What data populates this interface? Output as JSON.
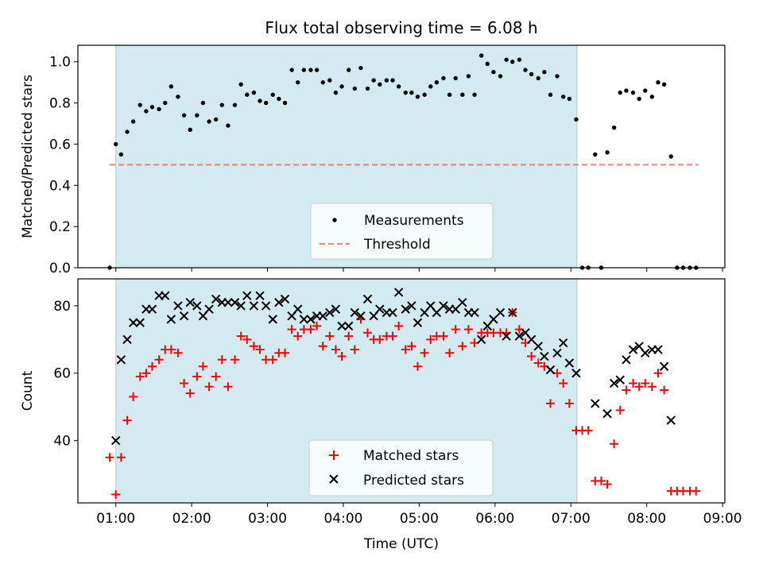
{
  "chart_data": {
    "type": "scatter",
    "title": "Flux total observing time = 6.08 h",
    "xlabel": "Time (UTC)",
    "x_ticks": [
      "01:00",
      "02:00",
      "03:00",
      "04:00",
      "05:00",
      "06:00",
      "07:00",
      "08:00",
      "09:00"
    ],
    "x_range_hours": [
      0.5,
      9.03
    ],
    "shaded_interval_hours": [
      1.0,
      7.08
    ],
    "shade_color": "#d3eaf0",
    "panels": [
      {
        "ylabel": "Matched/Predicted stars",
        "ylim": [
          0.0,
          1.08
        ],
        "y_ticks": [
          "0.0",
          "0.2",
          "0.4",
          "0.6",
          "0.8",
          "1.0"
        ],
        "legend": {
          "position": "lower center",
          "entries": [
            "Measurements",
            "Threshold"
          ]
        },
        "threshold": {
          "name": "Threshold",
          "value": 0.5,
          "x_range": [
            0.92,
            8.68
          ],
          "color": "#f08080",
          "style": "dashed"
        },
        "series": [
          {
            "name": "Measurements",
            "marker": "dot",
            "color": "#000000",
            "x": [
              0.92,
              1.0,
              1.07,
              1.15,
              1.23,
              1.32,
              1.4,
              1.48,
              1.57,
              1.65,
              1.73,
              1.82,
              1.9,
              1.98,
              2.07,
              2.15,
              2.23,
              2.32,
              2.4,
              2.48,
              2.57,
              2.65,
              2.73,
              2.82,
              2.9,
              2.98,
              3.07,
              3.15,
              3.23,
              3.32,
              3.4,
              3.48,
              3.57,
              3.65,
              3.73,
              3.82,
              3.9,
              3.98,
              4.07,
              4.15,
              4.23,
              4.32,
              4.4,
              4.48,
              4.57,
              4.65,
              4.73,
              4.82,
              4.9,
              4.98,
              5.07,
              5.15,
              5.23,
              5.32,
              5.4,
              5.48,
              5.57,
              5.65,
              5.73,
              5.82,
              5.9,
              5.98,
              6.07,
              6.15,
              6.23,
              6.32,
              6.4,
              6.48,
              6.57,
              6.65,
              6.73,
              6.82,
              6.9,
              6.98,
              7.07,
              7.15,
              7.23,
              7.32,
              7.4,
              7.48,
              7.57,
              7.65,
              7.73,
              7.82,
              7.9,
              7.98,
              8.07,
              8.15,
              8.23,
              8.32,
              8.4,
              8.48,
              8.57,
              8.65
            ],
            "y": [
              0.0,
              0.6,
              0.55,
              0.66,
              0.71,
              0.79,
              0.76,
              0.78,
              0.77,
              0.8,
              0.88,
              0.83,
              0.74,
              0.67,
              0.74,
              0.8,
              0.71,
              0.72,
              0.79,
              0.69,
              0.79,
              0.89,
              0.84,
              0.85,
              0.81,
              0.8,
              0.84,
              0.82,
              0.8,
              0.96,
              0.9,
              0.96,
              0.96,
              0.96,
              0.9,
              0.91,
              0.85,
              0.88,
              0.96,
              0.87,
              0.97,
              0.87,
              0.91,
              0.89,
              0.91,
              0.91,
              0.88,
              0.85,
              0.85,
              0.83,
              0.84,
              0.88,
              0.9,
              0.92,
              0.84,
              0.92,
              0.84,
              0.93,
              0.84,
              1.03,
              0.99,
              0.95,
              0.93,
              1.01,
              1.0,
              1.01,
              0.96,
              0.94,
              0.92,
              0.95,
              0.84,
              0.93,
              0.83,
              0.82,
              0.72,
              0.0,
              0.0,
              0.55,
              0.0,
              0.56,
              0.68,
              0.85,
              0.86,
              0.85,
              0.82,
              0.86,
              0.83,
              0.9,
              0.89,
              0.54,
              0.0,
              0.0,
              0.0,
              0.0
            ]
          }
        ]
      },
      {
        "ylabel": "Count",
        "ylim": [
          21.5,
          88
        ],
        "y_ticks": [
          "40",
          "60",
          "80"
        ],
        "legend": {
          "position": "lower center",
          "entries": [
            "Matched stars",
            "Predicted stars"
          ]
        },
        "series": [
          {
            "name": "Matched stars",
            "marker": "plus",
            "color": "#ff0000",
            "x": [
              0.92,
              1.0,
              1.07,
              1.15,
              1.23,
              1.32,
              1.4,
              1.48,
              1.57,
              1.65,
              1.73,
              1.82,
              1.9,
              1.98,
              2.07,
              2.15,
              2.23,
              2.32,
              2.4,
              2.48,
              2.57,
              2.65,
              2.73,
              2.82,
              2.9,
              2.98,
              3.07,
              3.15,
              3.23,
              3.32,
              3.4,
              3.48,
              3.57,
              3.65,
              3.73,
              3.82,
              3.9,
              3.98,
              4.07,
              4.15,
              4.23,
              4.32,
              4.4,
              4.48,
              4.57,
              4.65,
              4.73,
              4.82,
              4.9,
              4.98,
              5.07,
              5.15,
              5.23,
              5.32,
              5.4,
              5.48,
              5.57,
              5.65,
              5.73,
              5.82,
              5.9,
              5.98,
              6.07,
              6.15,
              6.23,
              6.32,
              6.4,
              6.48,
              6.57,
              6.65,
              6.73,
              6.82,
              6.9,
              6.98,
              7.07,
              7.15,
              7.23,
              7.32,
              7.4,
              7.48,
              7.57,
              7.65,
              7.73,
              7.82,
              7.9,
              7.98,
              8.07,
              8.15,
              8.23,
              8.32,
              8.4,
              8.48,
              8.57,
              8.65
            ],
            "y": [
              35,
              24,
              35,
              46,
              53,
              59,
              60,
              62,
              64,
              67,
              67,
              66,
              57,
              54,
              59,
              62,
              56,
              59,
              64,
              56,
              64,
              71,
              70,
              68,
              67,
              64,
              64,
              66,
              66,
              73,
              71,
              73,
              73,
              74,
              68,
              71,
              67,
              65,
              71,
              67,
              76,
              72,
              70,
              70,
              71,
              71,
              74,
              67,
              68,
              62,
              66,
              70,
              71,
              71,
              66,
              73,
              68,
              73,
              69,
              72,
              72,
              72,
              72,
              72,
              78,
              73,
              69,
              65,
              63,
              62,
              51,
              60,
              57,
              51,
              43,
              43,
              43,
              28,
              28,
              27,
              39,
              49,
              55,
              57,
              56,
              57,
              56,
              60,
              55,
              25,
              25,
              25,
              25,
              25
            ]
          },
          {
            "name": "Predicted stars",
            "marker": "x",
            "color": "#000000",
            "x": [
              1.0,
              1.07,
              1.15,
              1.23,
              1.32,
              1.4,
              1.48,
              1.57,
              1.65,
              1.73,
              1.82,
              1.9,
              1.98,
              2.07,
              2.15,
              2.23,
              2.32,
              2.4,
              2.48,
              2.57,
              2.65,
              2.73,
              2.82,
              2.9,
              2.98,
              3.07,
              3.15,
              3.23,
              3.32,
              3.4,
              3.48,
              3.57,
              3.65,
              3.73,
              3.82,
              3.9,
              3.98,
              4.07,
              4.15,
              4.23,
              4.32,
              4.4,
              4.48,
              4.57,
              4.65,
              4.73,
              4.82,
              4.9,
              4.98,
              5.07,
              5.15,
              5.23,
              5.32,
              5.4,
              5.48,
              5.57,
              5.65,
              5.73,
              5.82,
              5.9,
              5.98,
              6.07,
              6.15,
              6.23,
              6.32,
              6.4,
              6.48,
              6.57,
              6.65,
              6.73,
              6.82,
              6.9,
              6.98,
              7.07,
              7.32,
              7.48,
              7.57,
              7.65,
              7.73,
              7.82,
              7.9,
              7.98,
              8.07,
              8.15,
              8.23,
              8.32
            ],
            "y": [
              40,
              64,
              70,
              75,
              75,
              79,
              79,
              83,
              83,
              76,
              80,
              77,
              81,
              80,
              77,
              79,
              82,
              81,
              81,
              81,
              80,
              83,
              80,
              83,
              80,
              76,
              81,
              82,
              77,
              79,
              76,
              76,
              77,
              77,
              78,
              79,
              74,
              74,
              78,
              77,
              82,
              77,
              79,
              78,
              78,
              84,
              79,
              80,
              75,
              78,
              80,
              78,
              80,
              79,
              79,
              81,
              78,
              78,
              70,
              74,
              76,
              78,
              71,
              78,
              71,
              72,
              70,
              68,
              65,
              61,
              66,
              69,
              63,
              60,
              51,
              48,
              57,
              58,
              64,
              67,
              68,
              66,
              67,
              67,
              62,
              46
            ]
          }
        ]
      }
    ]
  }
}
